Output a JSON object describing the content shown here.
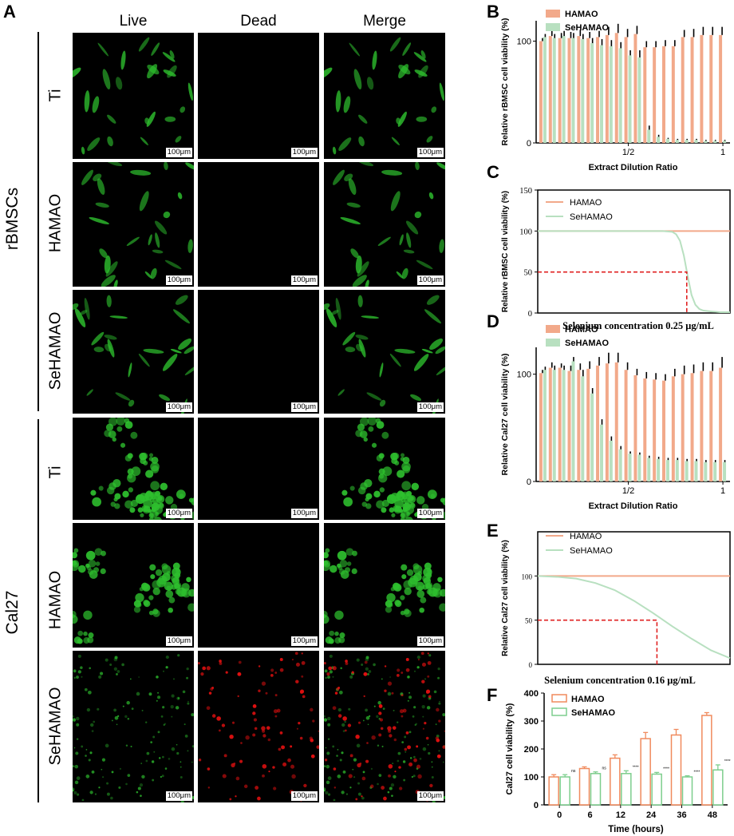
{
  "panel_labels": {
    "A": "A",
    "B": "B",
    "C": "C",
    "D": "D",
    "E": "E",
    "F": "F"
  },
  "panelA": {
    "columns": [
      "Live",
      "Dead",
      "Merge"
    ],
    "groups": [
      {
        "name": "rBMSCs",
        "rows": [
          "Ti",
          "HAMAO",
          "SeHAMAO"
        ]
      },
      {
        "name": "Cal27",
        "rows": [
          "Ti",
          "HAMAO",
          "SeHAMAO"
        ]
      }
    ],
    "scale_bar": "100μm",
    "colors": {
      "live": "#2ec02e",
      "dead": "#e01010",
      "background": "#000000"
    }
  },
  "chart_data": [
    {
      "id": "B",
      "type": "bar",
      "ylabel": "Relative rBMSC cell viability (%)",
      "xlabel": "Extract Dilution Ratio",
      "xticks": [
        "1/2",
        "1"
      ],
      "yticks": [
        0,
        100
      ],
      "ylim": [
        0,
        120
      ],
      "legend": [
        "HAMAO",
        "SeHAMAO"
      ],
      "colors": [
        "#f2a98a",
        "#b8e0c0"
      ],
      "series": [
        {
          "name": "HAMAO",
          "values": [
            100,
            105,
            103,
            103,
            105,
            103,
            104,
            106,
            108,
            104,
            107,
            94,
            94,
            95,
            95,
            104,
            104,
            106,
            106,
            106
          ],
          "errors": [
            3,
            5,
            5,
            6,
            6,
            6,
            6,
            8,
            9,
            8,
            8,
            6,
            6,
            6,
            6,
            7,
            8,
            8,
            8,
            8
          ]
        },
        {
          "name": "SeHAMAO",
          "values": [
            104,
            103,
            105,
            103,
            102,
            98,
            96,
            95,
            93,
            86,
            84,
            13,
            6,
            4,
            3,
            3,
            3,
            2,
            2,
            2
          ],
          "errors": [
            3,
            4,
            5,
            5,
            5,
            5,
            6,
            6,
            6,
            5,
            7,
            4,
            2,
            1,
            1,
            1,
            1,
            1,
            1,
            1
          ]
        }
      ]
    },
    {
      "id": "C",
      "type": "line",
      "ylabel": "Relative rBMSC cell viability (%)",
      "caption": "Selenium concentration 0.25 μg/mL",
      "yticks": [
        0,
        50,
        100,
        150
      ],
      "ylim": [
        0,
        150
      ],
      "legend": [
        "HAMAO",
        "SeHAMAO"
      ],
      "colors": [
        "#f2a98a",
        "#b8e0c0",
        "#e02020"
      ],
      "x": [
        0,
        0.1,
        0.2,
        0.3,
        0.4,
        0.5,
        0.6,
        0.65,
        0.7,
        0.72,
        0.74,
        0.76,
        0.78,
        0.8,
        0.82,
        0.84,
        0.86,
        0.9,
        0.95,
        1.0
      ],
      "series": [
        {
          "name": "HAMAO",
          "values": [
            100,
            100,
            100,
            100,
            100,
            100,
            100,
            100,
            100,
            100,
            100,
            100,
            100,
            100,
            100,
            100,
            100,
            100,
            100,
            100
          ]
        },
        {
          "name": "SeHAMAO",
          "values": [
            100,
            100,
            100,
            100,
            100,
            100,
            100,
            100,
            99,
            96,
            88,
            70,
            45,
            22,
            10,
            5,
            3,
            2,
            1,
            1
          ]
        }
      ],
      "ic50": {
        "x": 0.775,
        "y": 50
      }
    },
    {
      "id": "D",
      "type": "bar",
      "ylabel": "Relative Cal27 cell viability (%)",
      "xlabel": "Extract Dilution Ratio",
      "xticks": [
        "1/2",
        "1"
      ],
      "yticks": [
        0,
        100
      ],
      "ylim": [
        0,
        125
      ],
      "legend": [
        "HAMAO",
        "SeHAMAO"
      ],
      "colors": [
        "#f2a98a",
        "#b8e0c0"
      ],
      "series": [
        {
          "name": "HAMAO",
          "values": [
            101,
            106,
            106,
            103,
            104,
            105,
            108,
            110,
            111,
            104,
            99,
            96,
            95,
            94,
            98,
            100,
            101,
            103,
            103,
            106
          ],
          "errors": [
            3,
            5,
            4,
            5,
            6,
            7,
            8,
            10,
            9,
            7,
            6,
            6,
            6,
            6,
            7,
            8,
            8,
            8,
            8,
            10
          ]
        },
        {
          "name": "SeHAMAO",
          "values": [
            104,
            104,
            104,
            112,
            98,
            82,
            53,
            38,
            30,
            26,
            25,
            22,
            21,
            20,
            20,
            19,
            19,
            18,
            18,
            18
          ],
          "errors": [
            3,
            4,
            4,
            4,
            6,
            5,
            5,
            4,
            3,
            2,
            2,
            2,
            2,
            2,
            2,
            2,
            2,
            2,
            2,
            2
          ]
        }
      ]
    },
    {
      "id": "E",
      "type": "line",
      "ylabel": "Relative Cal27 cell viability (%)",
      "caption": "Selenium concentration 0.16 μg/mL",
      "yticks": [
        0,
        50,
        100,
        150
      ],
      "ylim": [
        0,
        150
      ],
      "legend": [
        "HAMAO",
        "SeHAMAO"
      ],
      "colors": [
        "#f2a98a",
        "#b8e0c0",
        "#e02020"
      ],
      "x": [
        0,
        0.1,
        0.2,
        0.3,
        0.4,
        0.5,
        0.6,
        0.7,
        0.8,
        0.9,
        1.0
      ],
      "series": [
        {
          "name": "HAMAO",
          "values": [
            100,
            100,
            100,
            100,
            100,
            100,
            100,
            100,
            100,
            100,
            100
          ]
        },
        {
          "name": "SeHAMAO",
          "values": [
            100,
            99,
            97,
            92,
            84,
            72,
            58,
            43,
            29,
            16,
            7
          ]
        }
      ],
      "ic50": {
        "x": 0.62,
        "y": 50
      }
    },
    {
      "id": "F",
      "type": "bar",
      "ylabel": "Cal27 cell viability (%)",
      "xlabel": "Time (hours)",
      "categories": [
        "0",
        "6",
        "12",
        "24",
        "36",
        "48"
      ],
      "yticks": [
        0,
        100,
        200,
        300,
        400
      ],
      "ylim": [
        0,
        400
      ],
      "legend": [
        "HAMAO",
        "SeHAMAO"
      ],
      "colors": [
        "#f08a5d",
        "#7dce8d"
      ],
      "series": [
        {
          "name": "HAMAO",
          "values": [
            100,
            130,
            167,
            237,
            250,
            320
          ],
          "errors": [
            8,
            6,
            12,
            22,
            20,
            10
          ]
        },
        {
          "name": "SeHAMAO",
          "values": [
            100,
            112,
            112,
            110,
            100,
            125
          ],
          "errors": [
            8,
            6,
            10,
            6,
            4,
            18
          ]
        }
      ],
      "significance": [
        "ns",
        "ns",
        "****",
        "****",
        "****",
        "****"
      ]
    }
  ]
}
